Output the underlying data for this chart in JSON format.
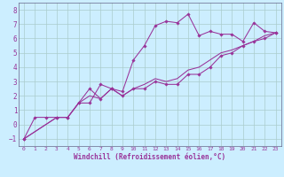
{
  "xlabel": "Windchill (Refroidissement éolien,°C)",
  "background_color": "#cceeff",
  "grid_color": "#aacccc",
  "line_color": "#993399",
  "xlim": [
    -0.5,
    23.5
  ],
  "ylim": [
    -1.5,
    8.5
  ],
  "xticks": [
    0,
    1,
    2,
    3,
    4,
    5,
    6,
    7,
    8,
    9,
    10,
    11,
    12,
    13,
    14,
    15,
    16,
    17,
    18,
    19,
    20,
    21,
    22,
    23
  ],
  "yticks": [
    -1,
    0,
    1,
    2,
    3,
    4,
    5,
    6,
    7,
    8
  ],
  "series1_x": [
    0,
    1,
    2,
    3,
    4,
    5,
    6,
    7,
    8,
    9,
    10,
    11,
    12,
    13,
    14,
    15,
    16,
    17,
    18,
    19,
    20,
    21,
    22,
    23
  ],
  "series1_y": [
    -1.0,
    0.5,
    0.5,
    0.5,
    0.5,
    1.5,
    1.5,
    2.8,
    2.5,
    2.3,
    4.5,
    5.5,
    6.9,
    7.2,
    7.1,
    7.7,
    6.2,
    6.5,
    6.3,
    6.3,
    5.8,
    7.1,
    6.5,
    6.4
  ],
  "series2_x": [
    0,
    3,
    4,
    5,
    6,
    7,
    8,
    9,
    10,
    11,
    12,
    13,
    14,
    15,
    16,
    17,
    18,
    19,
    20,
    21,
    22,
    23
  ],
  "series2_y": [
    -1.0,
    0.5,
    0.5,
    1.5,
    2.5,
    1.8,
    2.5,
    2.0,
    2.5,
    2.5,
    3.0,
    2.8,
    2.8,
    3.5,
    3.5,
    4.0,
    4.8,
    5.0,
    5.5,
    5.8,
    6.0,
    6.4
  ],
  "series3_x": [
    0,
    3,
    4,
    5,
    6,
    7,
    8,
    9,
    10,
    11,
    12,
    13,
    14,
    15,
    16,
    17,
    18,
    19,
    20,
    21,
    22,
    23
  ],
  "series3_y": [
    -1.0,
    0.5,
    0.5,
    1.5,
    2.0,
    1.8,
    2.5,
    2.0,
    2.5,
    2.8,
    3.2,
    3.0,
    3.2,
    3.8,
    4.0,
    4.5,
    5.0,
    5.2,
    5.5,
    5.8,
    6.2,
    6.4
  ]
}
